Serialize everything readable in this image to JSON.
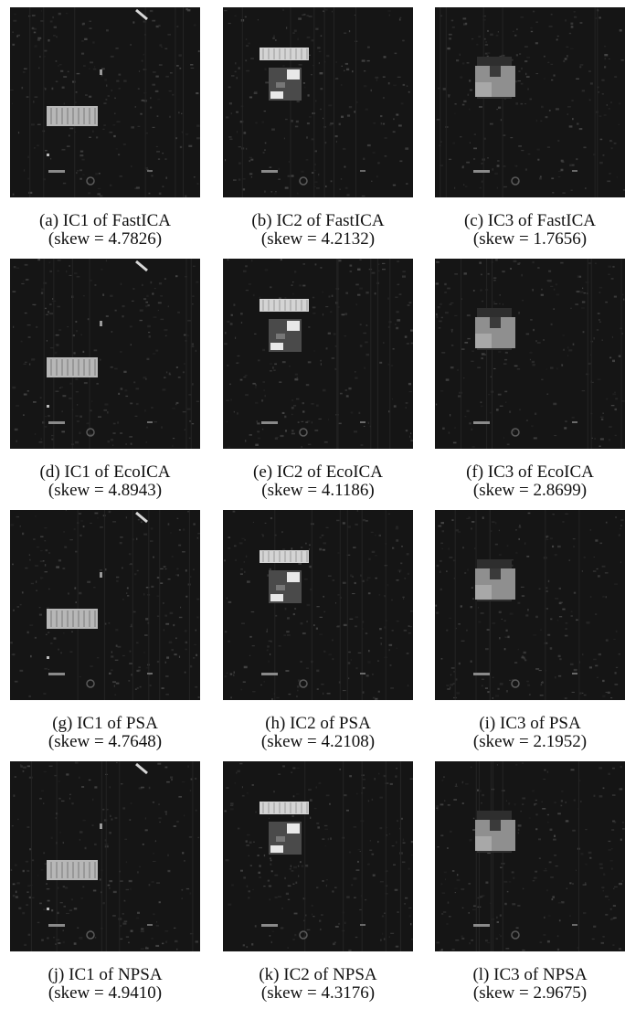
{
  "figure": {
    "panels": [
      {
        "label": "(a) IC1 of FastICA",
        "skew": "(skew = 4.7826)",
        "component": "IC1"
      },
      {
        "label": "(b) IC2 of FastICA",
        "skew": "(skew = 4.2132)",
        "component": "IC2"
      },
      {
        "label": "(c) IC3 of FastICA",
        "skew": "(skew = 1.7656)",
        "component": "IC3"
      },
      {
        "label": "(d) IC1 of EcoICA",
        "skew": "(skew = 4.8943)",
        "component": "IC1"
      },
      {
        "label": "(e) IC2 of EcoICA",
        "skew": "(skew = 4.1186)",
        "component": "IC2"
      },
      {
        "label": "(f) IC3 of EcoICA",
        "skew": "(skew = 2.8699)",
        "component": "IC3"
      },
      {
        "label": "(g) IC1 of PSA",
        "skew": "(skew = 4.7648)",
        "component": "IC1"
      },
      {
        "label": "(h) IC2 of PSA",
        "skew": "(skew = 4.2108)",
        "component": "IC2"
      },
      {
        "label": "(i) IC3 of PSA",
        "skew": "(skew = 2.1952)",
        "component": "IC3"
      },
      {
        "label": "(j) IC1 of NPSA",
        "skew": "(skew = 4.9410)",
        "component": "IC1"
      },
      {
        "label": "(k) IC2 of NPSA",
        "skew": "(skew = 4.3176)",
        "component": "IC2"
      },
      {
        "label": "(l) IC3 of NPSA",
        "skew": "(skew = 2.9675)",
        "component": "IC3"
      }
    ]
  }
}
